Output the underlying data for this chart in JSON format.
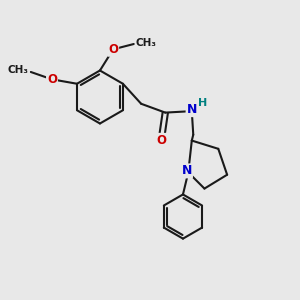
{
  "bg_color": "#e8e8e8",
  "bond_color": "#1a1a1a",
  "bond_width": 1.5,
  "atom_colors": {
    "O": "#cc0000",
    "N": "#0000cc",
    "NH": "#008080",
    "C": "#1a1a1a"
  },
  "font_size_atom": 8.5,
  "xlim": [
    0,
    10
  ],
  "ylim": [
    0,
    10
  ]
}
